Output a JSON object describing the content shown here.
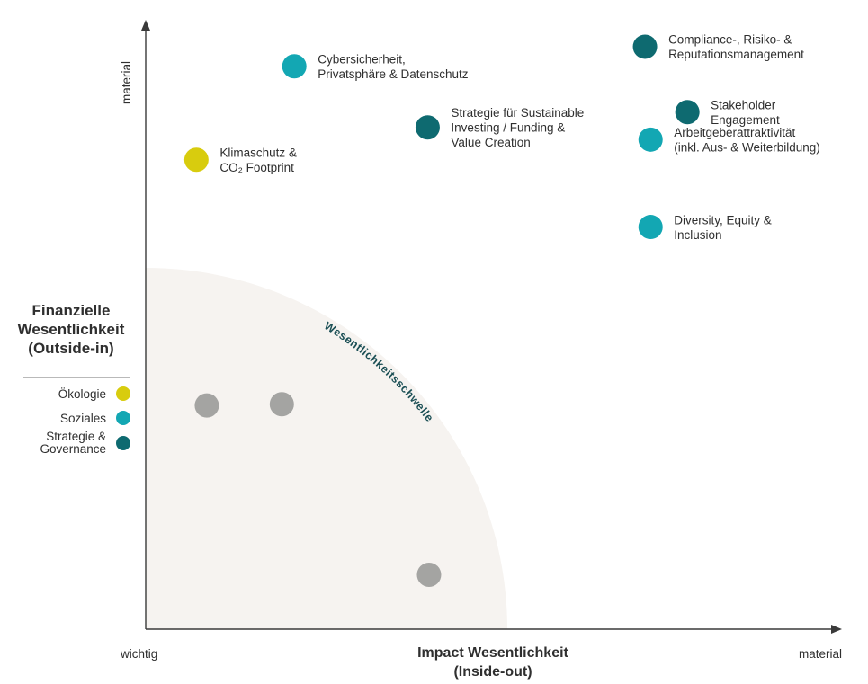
{
  "colors": {
    "oekologie": "#d8cc0e",
    "soziales": "#13a7b3",
    "strategie": "#0e6a70",
    "neutral": "#a4a4a2",
    "zone": "#f6f3f0",
    "axis": "#3a3a3a",
    "threshold_text": "#1b4f55"
  },
  "chart_data": {
    "type": "scatter",
    "title": "",
    "x_axis": {
      "label_line1": "Impact Wesentlichkeit",
      "label_line2": "(Inside-out)",
      "min_label": "wichtig",
      "max_label": "material",
      "range": [
        0,
        100
      ]
    },
    "y_axis": {
      "label_line1": "Finanzielle",
      "label_line2": "Wesentlichkeit",
      "label_line3": "(Outside-in)",
      "max_label": "material",
      "range": [
        0,
        100
      ]
    },
    "threshold": {
      "label": "Wesentlichkeitsschwelle",
      "radius": 52
    },
    "legend": [
      {
        "category": "oekologie",
        "label_line1": "Ökologie",
        "label_line2": ""
      },
      {
        "category": "soziales",
        "label_line1": "Soziales",
        "label_line2": ""
      },
      {
        "category": "strategie",
        "label_line1": "Strategie &",
        "label_line2": "Governance"
      }
    ],
    "points": [
      {
        "x": 7.3,
        "y": 76.8,
        "category": "oekologie",
        "label": [
          "Klimaschutz &",
          "CO₂ Footprint"
        ]
      },
      {
        "x": 21.4,
        "y": 92.1,
        "category": "soziales",
        "label": [
          "Cybersicherheit,",
          "Privatsphäre & Datenschutz"
        ]
      },
      {
        "x": 40.6,
        "y": 82.1,
        "category": "strategie",
        "label": [
          "Strategie für Sustainable",
          "Investing / Funding &",
          "Value Creation"
        ]
      },
      {
        "x": 71.9,
        "y": 95.3,
        "category": "strategie",
        "label": [
          "Compliance-, Risiko- &",
          "Reputationsmanagement"
        ]
      },
      {
        "x": 78.0,
        "y": 84.6,
        "category": "strategie",
        "label": [
          "Stakeholder",
          "Engagement"
        ]
      },
      {
        "x": 72.7,
        "y": 80.1,
        "category": "soziales",
        "label": [
          "Arbeitgeberattraktivität",
          "(inkl. Aus- & Weiterbildung)"
        ]
      },
      {
        "x": 72.7,
        "y": 65.8,
        "category": "soziales",
        "label": [
          "Diversity, Equity &",
          "Inclusion"
        ]
      },
      {
        "x": 8.8,
        "y": 36.6,
        "category": "neutral",
        "label": []
      },
      {
        "x": 19.6,
        "y": 36.8,
        "category": "neutral",
        "label": []
      },
      {
        "x": 40.8,
        "y": 8.9,
        "category": "neutral",
        "label": []
      }
    ]
  }
}
